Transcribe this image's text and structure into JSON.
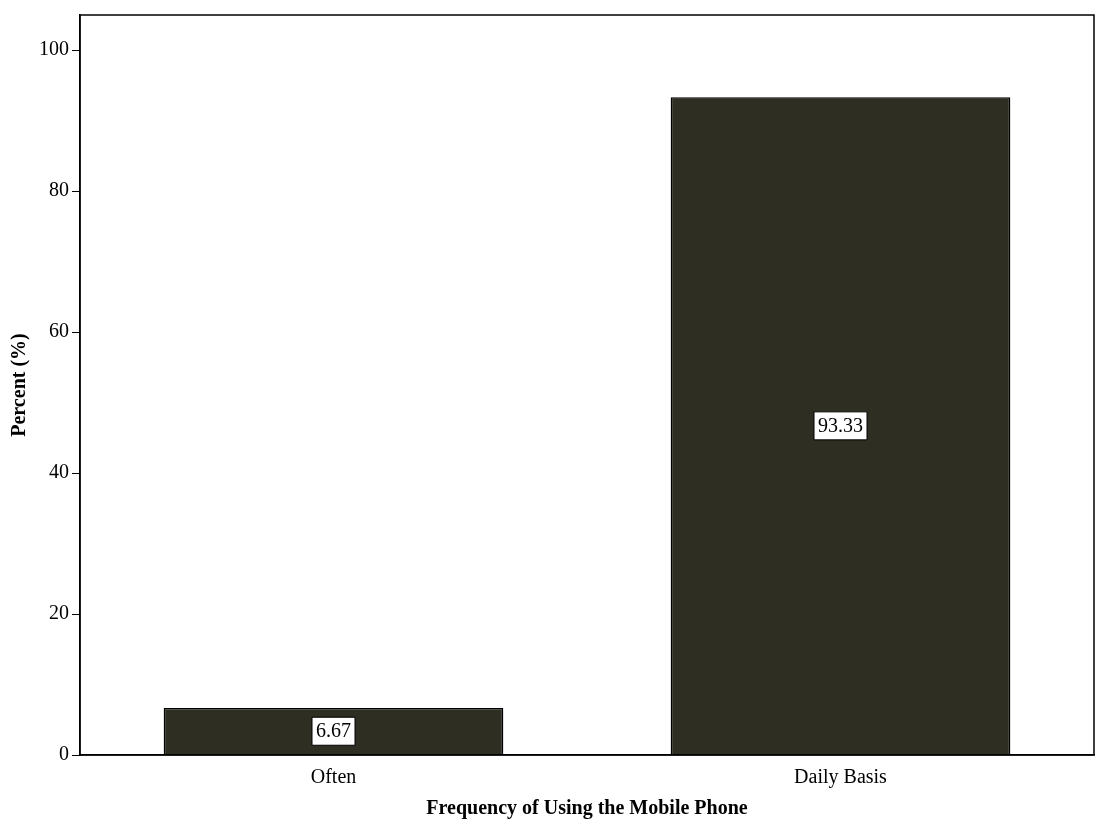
{
  "chart_data": {
    "type": "bar",
    "xlabel": "Frequency of Using the Mobile Phone",
    "ylabel": "Percent (%)",
    "categories": [
      "Often",
      "Daily Basis"
    ],
    "values": [
      6.67,
      93.33
    ],
    "color": "#2e2e22",
    "ylim": [
      0,
      105
    ],
    "yticks": [
      0,
      20,
      40,
      60,
      80,
      100
    ],
    "grid": false,
    "legend": false,
    "data_labels": true
  }
}
